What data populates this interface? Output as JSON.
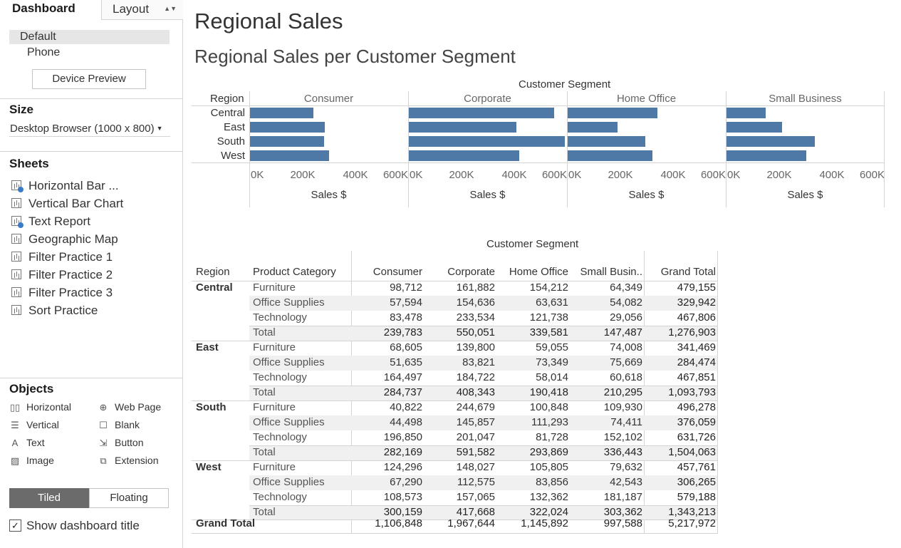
{
  "sidebar": {
    "tab_dashboard": "Dashboard",
    "tab_layout": "Layout",
    "devices": [
      "Default",
      "Phone"
    ],
    "device_preview": "Device Preview",
    "size_heading": "Size",
    "size_value": "Desktop Browser (1000 x 800)",
    "sheets_heading": "Sheets",
    "sheets": [
      {
        "label": "Horizontal Bar ...",
        "used": true
      },
      {
        "label": "Vertical Bar Chart",
        "used": false
      },
      {
        "label": "Text Report",
        "used": true
      },
      {
        "label": "Geographic Map",
        "used": false
      },
      {
        "label": "Filter Practice 1",
        "used": false
      },
      {
        "label": "Filter Practice 2",
        "used": false
      },
      {
        "label": "Filter Practice 3",
        "used": false
      },
      {
        "label": "Sort Practice",
        "used": false
      }
    ],
    "objects_heading": "Objects",
    "objects": [
      {
        "label": "Horizontal",
        "icon": "horizontal-container-icon"
      },
      {
        "label": "Web Page",
        "icon": "globe-icon"
      },
      {
        "label": "Vertical",
        "icon": "vertical-container-icon"
      },
      {
        "label": "Blank",
        "icon": "blank-icon"
      },
      {
        "label": "Text",
        "icon": "text-icon"
      },
      {
        "label": "Button",
        "icon": "button-icon"
      },
      {
        "label": "Image",
        "icon": "image-icon"
      },
      {
        "label": "Extension",
        "icon": "extension-icon"
      }
    ],
    "tiled": "Tiled",
    "floating": "Floating",
    "show_title_label": "Show dashboard title",
    "show_title_checked": true
  },
  "dashboard": {
    "title": "Regional Sales",
    "chart_title": "Regional Sales per Customer Segment",
    "table_header": "Customer Segment",
    "table_row_header_region": "Region",
    "table_row_header_category": "Product Category",
    "grand_total_label": "Grand Total",
    "total_label": "Total"
  },
  "chart_data": {
    "type": "bar",
    "orientation": "horizontal",
    "title": "Customer Segment",
    "row_label": "Region",
    "categories": [
      "Central",
      "East",
      "South",
      "West"
    ],
    "panels": [
      {
        "name": "Consumer",
        "values": [
          239783,
          284737,
          282169,
          300159
        ]
      },
      {
        "name": "Corporate",
        "values": [
          550051,
          408343,
          591582,
          417668
        ]
      },
      {
        "name": "Home Office",
        "values": [
          339581,
          190418,
          293869,
          322024
        ]
      },
      {
        "name": "Small Business",
        "values": [
          147487,
          210295,
          336443,
          303362
        ]
      }
    ],
    "xlabel": "Sales $",
    "xlim": [
      0,
      600000
    ],
    "xticks": [
      "0K",
      "200K",
      "400K",
      "600K"
    ],
    "color": "#4e79a7"
  },
  "table": {
    "columns": [
      "Consumer",
      "Corporate",
      "Home Office",
      "Small Busin..",
      "Grand Total"
    ],
    "regions": [
      {
        "name": "Central",
        "rows": [
          {
            "cat": "Furniture",
            "vals": [
              "98,712",
              "161,882",
              "154,212",
              "64,349",
              "479,155"
            ]
          },
          {
            "cat": "Office Supplies",
            "vals": [
              "57,594",
              "154,636",
              "63,631",
              "54,082",
              "329,942"
            ]
          },
          {
            "cat": "Technology",
            "vals": [
              "83,478",
              "233,534",
              "121,738",
              "29,056",
              "467,806"
            ]
          },
          {
            "cat": "Total",
            "vals": [
              "239,783",
              "550,051",
              "339,581",
              "147,487",
              "1,276,903"
            ]
          }
        ]
      },
      {
        "name": "East",
        "rows": [
          {
            "cat": "Furniture",
            "vals": [
              "68,605",
              "139,800",
              "59,055",
              "74,008",
              "341,469"
            ]
          },
          {
            "cat": "Office Supplies",
            "vals": [
              "51,635",
              "83,821",
              "73,349",
              "75,669",
              "284,474"
            ]
          },
          {
            "cat": "Technology",
            "vals": [
              "164,497",
              "184,722",
              "58,014",
              "60,618",
              "467,851"
            ]
          },
          {
            "cat": "Total",
            "vals": [
              "284,737",
              "408,343",
              "190,418",
              "210,295",
              "1,093,793"
            ]
          }
        ]
      },
      {
        "name": "South",
        "rows": [
          {
            "cat": "Furniture",
            "vals": [
              "40,822",
              "244,679",
              "100,848",
              "109,930",
              "496,278"
            ]
          },
          {
            "cat": "Office Supplies",
            "vals": [
              "44,498",
              "145,857",
              "111,293",
              "74,411",
              "376,059"
            ]
          },
          {
            "cat": "Technology",
            "vals": [
              "196,850",
              "201,047",
              "81,728",
              "152,102",
              "631,726"
            ]
          },
          {
            "cat": "Total",
            "vals": [
              "282,169",
              "591,582",
              "293,869",
              "336,443",
              "1,504,063"
            ]
          }
        ]
      },
      {
        "name": "West",
        "rows": [
          {
            "cat": "Furniture",
            "vals": [
              "124,296",
              "148,027",
              "105,805",
              "79,632",
              "457,761"
            ]
          },
          {
            "cat": "Office Supplies",
            "vals": [
              "67,290",
              "112,575",
              "83,856",
              "42,543",
              "306,265"
            ]
          },
          {
            "cat": "Technology",
            "vals": [
              "108,573",
              "157,065",
              "132,362",
              "181,187",
              "579,188"
            ]
          },
          {
            "cat": "Total",
            "vals": [
              "300,159",
              "417,668",
              "322,024",
              "303,362",
              "1,343,213"
            ]
          }
        ]
      }
    ],
    "grand_total": [
      "1,106,848",
      "1,967,644",
      "1,145,892",
      "997,588",
      "5,217,972"
    ]
  }
}
